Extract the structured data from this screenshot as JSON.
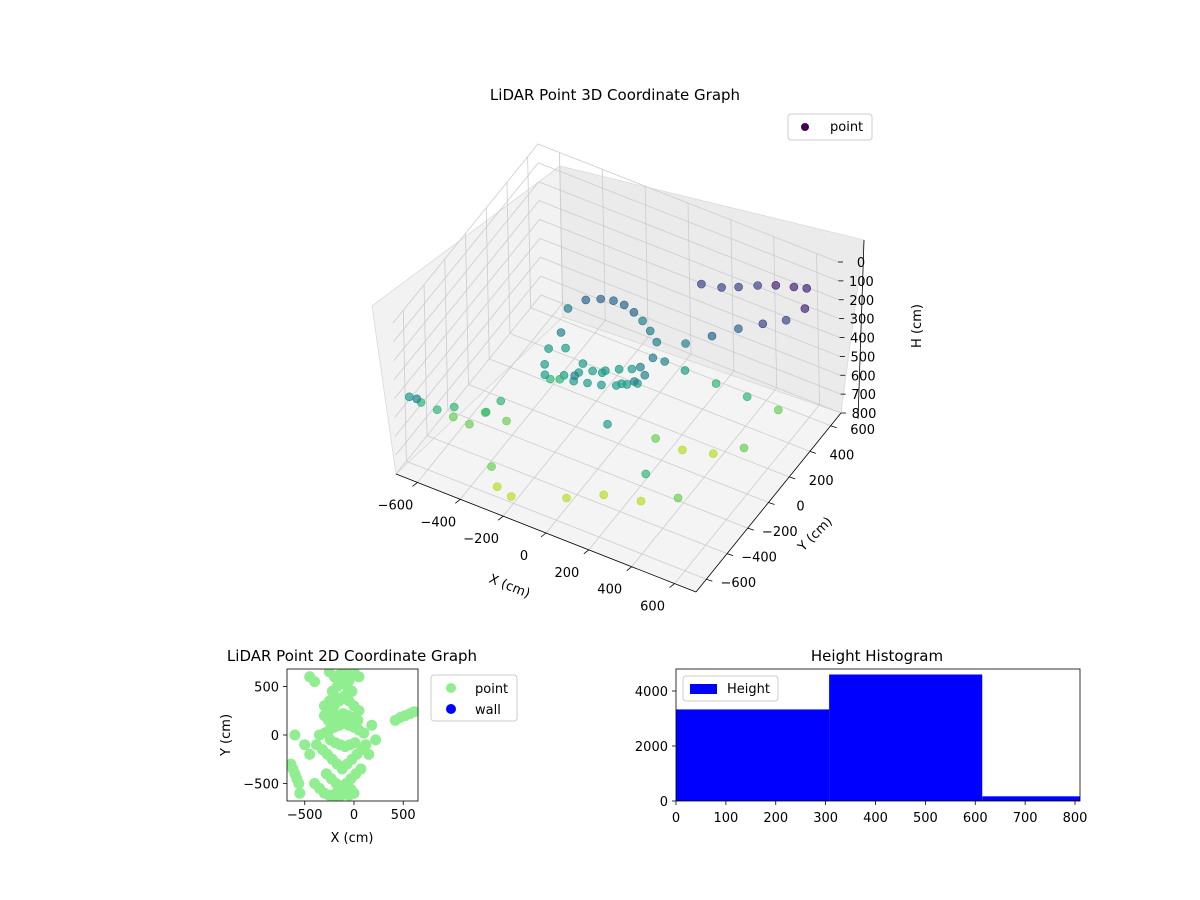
{
  "colors": {
    "point_3d": "#440154",
    "point_2d": "#90ee90",
    "wall": "#0000ff",
    "hist": "#0000ff",
    "pane": "#f2f2f2",
    "grid": "#cccccc"
  },
  "chart_data": [
    {
      "type": "scatter",
      "title": "LiDAR Point 3D Coordinate Graph",
      "xlabel": "X (cm)",
      "ylabel": "Y (cm)",
      "zlabel": "H (cm)",
      "xlim": [
        -700,
        700
      ],
      "ylim": [
        -700,
        700
      ],
      "zlim": [
        0,
        800
      ],
      "z_inverted": true,
      "x_ticks": [
        "−600",
        "−400",
        "−200",
        "0",
        "200",
        "400",
        "600"
      ],
      "y_ticks": [
        "−600",
        "−400",
        "−200",
        "0",
        "200",
        "400",
        "600"
      ],
      "z_ticks": [
        "0",
        "100",
        "200",
        "300",
        "400",
        "500",
        "600",
        "700",
        "800"
      ],
      "legend": {
        "entries": [
          "point"
        ],
        "placement": "top-right"
      },
      "grid": true,
      "series": [
        {
          "name": "point",
          "note_colormap": "viridis by height",
          "x": [
            -300,
            -250,
            -200,
            -150,
            -100,
            -50,
            0,
            50,
            100,
            120,
            130,
            100,
            50,
            -50,
            -150,
            -250,
            -300,
            -320,
            -300,
            -280,
            -200,
            -150,
            -100,
            -50,
            0,
            50,
            80,
            100,
            60,
            20,
            -40,
            -100,
            -160,
            -220,
            -260,
            180,
            250,
            320,
            400,
            480,
            560,
            620,
            650,
            600,
            500,
            400,
            300,
            200,
            150,
            220,
            340,
            460,
            580,
            200,
            300,
            420,
            540,
            -400,
            -450,
            -500,
            -550,
            -600,
            -650,
            -680,
            -620,
            -520,
            -420,
            -350,
            -300,
            -250,
            -200,
            0,
            150,
            300,
            450,
            -100,
            100,
            350
          ],
          "y": [
            150,
            220,
            260,
            280,
            280,
            270,
            250,
            220,
            180,
            100,
            0,
            -40,
            -60,
            -40,
            -20,
            20,
            80,
            0,
            -80,
            -120,
            -100,
            -60,
            -30,
            -10,
            20,
            40,
            60,
            -10,
            -30,
            -50,
            -70,
            -80,
            -90,
            -100,
            -110,
            450,
            500,
            520,
            540,
            550,
            560,
            560,
            480,
            400,
            380,
            350,
            300,
            250,
            150,
            200,
            250,
            300,
            350,
            -50,
            0,
            50,
            100,
            -300,
            -350,
            -400,
            -450,
            -500,
            -550,
            -600,
            -650,
            -500,
            -400,
            -350,
            -600,
            -650,
            -620,
            -500,
            -450,
            -400,
            -350,
            -200,
            -300,
            -450
          ],
          "z": [
            320,
            300,
            300,
            300,
            300,
            310,
            320,
            330,
            340,
            360,
            380,
            400,
            420,
            420,
            430,
            420,
            400,
            440,
            460,
            480,
            460,
            450,
            440,
            430,
            420,
            410,
            400,
            430,
            440,
            450,
            460,
            470,
            480,
            490,
            500,
            180,
            200,
            180,
            150,
            120,
            100,
            80,
            120,
            150,
            200,
            250,
            300,
            350,
            400,
            450,
            500,
            550,
            600,
            650,
            700,
            700,
            650,
            550,
            600,
            650,
            600,
            550,
            500,
            450,
            400,
            500,
            550,
            600,
            650,
            700,
            750,
            750,
            700,
            700,
            650,
            350,
            450,
            500
          ]
        }
      ]
    },
    {
      "type": "scatter",
      "title": "LiDAR Point 2D Coordinate Graph",
      "xlabel": "X (cm)",
      "ylabel": "Y (cm)",
      "xlim": [
        -680,
        650
      ],
      "ylim": [
        -680,
        680
      ],
      "x_ticks": [
        -500,
        0,
        500
      ],
      "y_ticks": [
        -500,
        0,
        500
      ],
      "legend": {
        "entries": [
          "point",
          "wall"
        ],
        "placement": "outside-right"
      },
      "series": [
        {
          "name": "point",
          "x": [
            -350,
            -300,
            -250,
            -200,
            -150,
            -100,
            -50,
            0,
            50,
            100,
            -380,
            -320,
            -270,
            -220,
            -170,
            -120,
            -70,
            -20,
            30,
            80,
            120,
            -300,
            -250,
            -200,
            -150,
            -100,
            -50,
            0,
            50,
            -280,
            -230,
            -180,
            -130,
            -80,
            -30,
            20,
            70,
            -260,
            -210,
            -160,
            -110,
            -60,
            -10,
            40,
            -240,
            -190,
            -140,
            -90,
            -40,
            10,
            -220,
            -170,
            -120,
            -70,
            -20,
            -200,
            -150,
            -100,
            -50,
            -180,
            -130,
            -80,
            -30,
            -300,
            -250,
            -200,
            420,
            470,
            520,
            570,
            610,
            180,
            220,
            150,
            -640,
            -620,
            -600,
            -580,
            -560,
            -500,
            -450,
            -400,
            -350,
            -300,
            -250,
            -200,
            -150,
            -100,
            -50,
            0,
            -450,
            -400,
            -250,
            -100,
            0,
            50,
            -600,
            -550
          ],
          "y": [
            0,
            20,
            50,
            80,
            100,
            120,
            100,
            80,
            50,
            20,
            -100,
            -150,
            -200,
            -250,
            -300,
            -350,
            -300,
            -250,
            -200,
            -150,
            -100,
            200,
            250,
            300,
            350,
            400,
            350,
            300,
            250,
            -400,
            -450,
            -500,
            -550,
            -500,
            -450,
            -400,
            -350,
            150,
            180,
            200,
            220,
            200,
            180,
            150,
            -50,
            -80,
            -100,
            -120,
            -100,
            -80,
            450,
            500,
            550,
            500,
            450,
            600,
            620,
            580,
            560,
            -600,
            -620,
            -580,
            -560,
            300,
            350,
            400,
            150,
            180,
            200,
            220,
            240,
            100,
            -50,
            -200,
            -300,
            -350,
            -400,
            -450,
            -500,
            -100,
            -200,
            -500,
            -550,
            -600,
            -620,
            -640,
            -600,
            -580,
            -620,
            -600,
            600,
            550,
            650,
            640,
            650,
            600,
            0,
            -600
          ]
        },
        {
          "name": "wall",
          "x": [],
          "y": []
        }
      ]
    },
    {
      "type": "bar",
      "title": "Height Histogram",
      "xlim": [
        0,
        810
      ],
      "ylim": [
        0,
        4800
      ],
      "x_ticks": [
        0,
        100,
        200,
        300,
        400,
        500,
        600,
        700,
        800
      ],
      "y_ticks": [
        0,
        2000,
        4000
      ],
      "legend": {
        "entries": [
          "Height"
        ],
        "placement": "upper-left"
      },
      "bins": [
        {
          "x0": 0,
          "x1": 307,
          "count": 3330
        },
        {
          "x0": 307,
          "x1": 614,
          "count": 4600
        },
        {
          "x0": 614,
          "x1": 810,
          "count": 170
        }
      ],
      "series": [
        {
          "name": "Height"
        }
      ]
    }
  ]
}
